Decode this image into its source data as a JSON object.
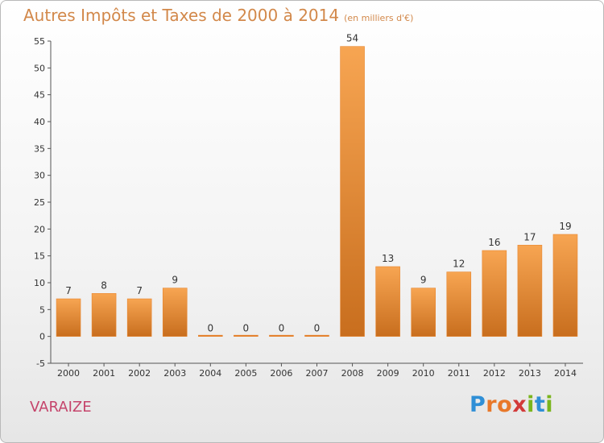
{
  "header": {
    "title": "Autres Impôts et Taxes de 2000 à 2014",
    "subtitle": "(en milliers d'€)"
  },
  "location": {
    "name": "VARAIZE"
  },
  "logo": {
    "text": "Proxiti",
    "letters": [
      {
        "ch": "P",
        "color": "#2f8fd6"
      },
      {
        "ch": "r",
        "color": "#e8782a"
      },
      {
        "ch": "o",
        "color": "#e8782a"
      },
      {
        "ch": "x",
        "color": "#d23a3a"
      },
      {
        "ch": "i",
        "color": "#7ab51d"
      },
      {
        "ch": "t",
        "color": "#2f8fd6"
      },
      {
        "ch": "i",
        "color": "#7ab51d"
      }
    ]
  },
  "colors": {
    "bar_top": "#f7a552",
    "bar_bottom": "#c86e1e",
    "title": "#d2884a",
    "location": "#c5446b"
  },
  "chart_data": {
    "type": "bar",
    "title": "Autres Impôts et Taxes de 2000 à 2014",
    "subtitle": "(en milliers d'€)",
    "categories": [
      "2000",
      "2001",
      "2002",
      "2003",
      "2004",
      "2005",
      "2006",
      "2007",
      "2008",
      "2009",
      "2010",
      "2011",
      "2012",
      "2013",
      "2014"
    ],
    "values": [
      7,
      8,
      7,
      9,
      0,
      0,
      0,
      0,
      54,
      13,
      9,
      12,
      16,
      17,
      19
    ],
    "ylim": [
      -5,
      55
    ],
    "yticks": [
      -5,
      0,
      5,
      10,
      15,
      20,
      25,
      30,
      35,
      40,
      45,
      50,
      55
    ],
    "grid": false,
    "legend": "none"
  }
}
